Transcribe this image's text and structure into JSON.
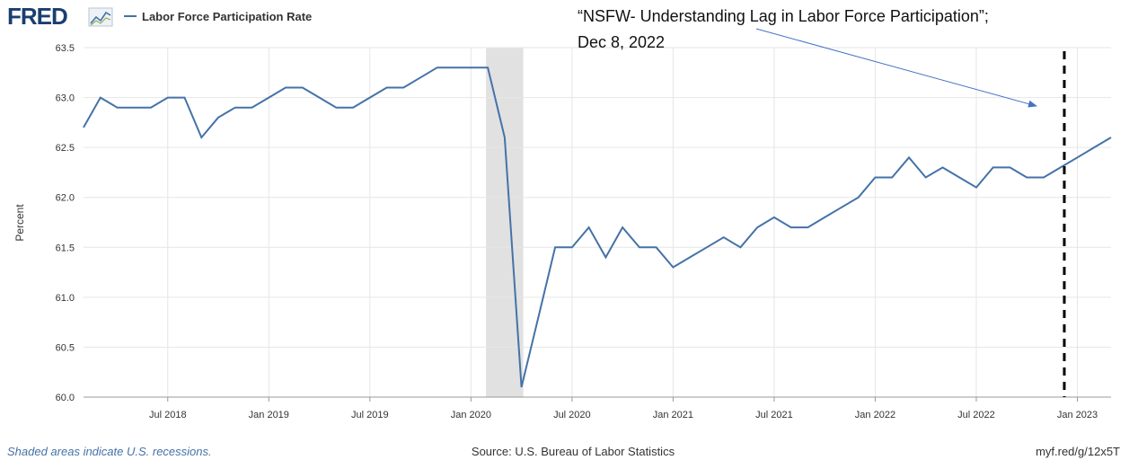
{
  "header": {
    "logo_text": "FRED",
    "legend_label": "Labor Force Participation Rate"
  },
  "annotation": {
    "line1": "“NSFW- Understanding Lag in Labor Force Participation”;",
    "line2": "Dec 8, 2022"
  },
  "footer": {
    "recession_note": "Shaded areas indicate U.S. recessions.",
    "source": "Source: U.S. Bureau of Labor Statistics",
    "short_link": "myf.red/g/12x5T"
  },
  "colors": {
    "series": "#4572a7",
    "recession": "#e1e1e1",
    "grid": "#e6e6e6",
    "arrow": "#4472c4",
    "marker": "#000000"
  },
  "chart_data": {
    "type": "line",
    "title": "",
    "xlabel": "",
    "ylabel": "Percent",
    "ylim": [
      60.0,
      63.5
    ],
    "yticks": [
      "60.0",
      "60.5",
      "61.0",
      "61.5",
      "62.0",
      "62.5",
      "63.0",
      "63.5"
    ],
    "xlim": [
      "2018-02",
      "2023-03"
    ],
    "xticks": [
      {
        "date": "2018-07",
        "label": "Jul 2018"
      },
      {
        "date": "2019-01",
        "label": "Jan 2019"
      },
      {
        "date": "2019-07",
        "label": "Jul 2019"
      },
      {
        "date": "2020-01",
        "label": "Jan 2020"
      },
      {
        "date": "2020-07",
        "label": "Jul 2020"
      },
      {
        "date": "2021-01",
        "label": "Jan 2021"
      },
      {
        "date": "2021-07",
        "label": "Jul 2021"
      },
      {
        "date": "2022-01",
        "label": "Jan 2022"
      },
      {
        "date": "2022-07",
        "label": "Jul 2022"
      },
      {
        "date": "2023-01",
        "label": "Jan 2023"
      }
    ],
    "grid": true,
    "legend_position": "top-left",
    "recession": {
      "start": "2020-02",
      "end": "2020-04"
    },
    "marker_date": "2022-12-08",
    "series": [
      {
        "name": "Labor Force Participation Rate",
        "x": [
          "2018-02",
          "2018-03",
          "2018-04",
          "2018-05",
          "2018-06",
          "2018-07",
          "2018-08",
          "2018-09",
          "2018-10",
          "2018-11",
          "2018-12",
          "2019-01",
          "2019-02",
          "2019-03",
          "2019-04",
          "2019-05",
          "2019-06",
          "2019-07",
          "2019-08",
          "2019-09",
          "2019-10",
          "2019-11",
          "2019-12",
          "2020-01",
          "2020-02",
          "2020-03",
          "2020-04",
          "2020-05",
          "2020-06",
          "2020-07",
          "2020-08",
          "2020-09",
          "2020-10",
          "2020-11",
          "2020-12",
          "2021-01",
          "2021-02",
          "2021-03",
          "2021-04",
          "2021-05",
          "2021-06",
          "2021-07",
          "2021-08",
          "2021-09",
          "2021-10",
          "2021-11",
          "2021-12",
          "2022-01",
          "2022-02",
          "2022-03",
          "2022-04",
          "2022-05",
          "2022-06",
          "2022-07",
          "2022-08",
          "2022-09",
          "2022-10",
          "2022-11",
          "2022-12",
          "2023-01",
          "2023-02",
          "2023-03"
        ],
        "values": [
          62.7,
          63.0,
          62.9,
          62.9,
          62.9,
          63.0,
          63.0,
          62.6,
          62.8,
          62.9,
          62.9,
          63.0,
          63.1,
          63.1,
          63.0,
          62.9,
          62.9,
          63.0,
          63.1,
          63.1,
          63.2,
          63.3,
          63.3,
          63.3,
          63.3,
          62.6,
          60.1,
          60.8,
          61.5,
          61.5,
          61.7,
          61.4,
          61.7,
          61.5,
          61.5,
          61.3,
          61.4,
          61.5,
          61.6,
          61.5,
          61.7,
          61.8,
          61.7,
          61.7,
          61.8,
          61.9,
          62.0,
          62.2,
          62.2,
          62.4,
          62.2,
          62.3,
          62.2,
          62.1,
          62.3,
          62.3,
          62.2,
          62.2,
          62.3,
          62.4,
          62.5,
          62.6
        ]
      }
    ]
  }
}
